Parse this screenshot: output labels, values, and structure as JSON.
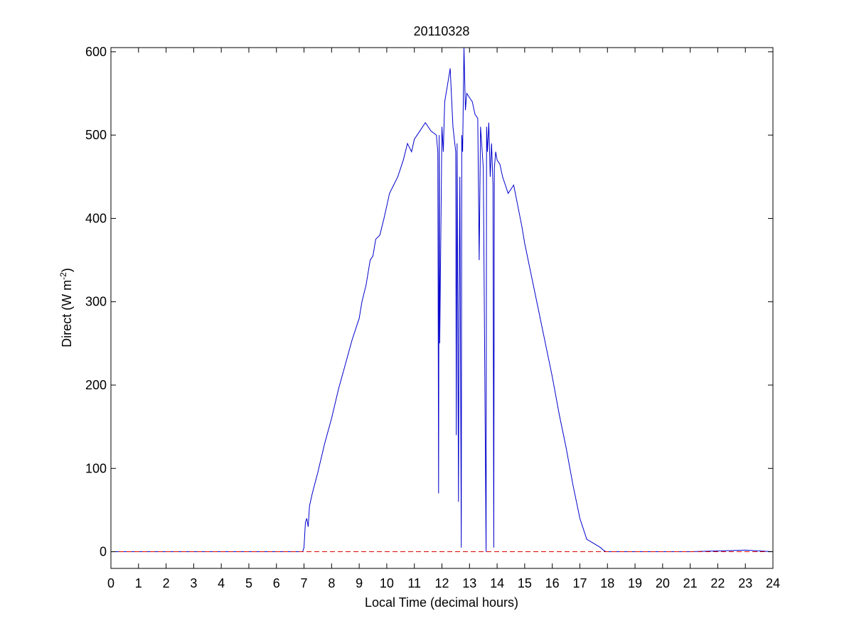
{
  "chart_data": {
    "type": "line",
    "title": "20110328",
    "xlabel": "Local Time (decimal hours)",
    "ylabel": {
      "prefix": "Direct (W m",
      "superscript": "-2",
      "suffix": ")"
    },
    "xlim": [
      0,
      24
    ],
    "ylim": [
      -20,
      605
    ],
    "xticks": [
      0,
      1,
      2,
      3,
      4,
      5,
      6,
      7,
      8,
      9,
      10,
      11,
      12,
      13,
      14,
      15,
      16,
      17,
      18,
      19,
      20,
      21,
      22,
      23,
      24
    ],
    "yticks": [
      0,
      100,
      200,
      300,
      400,
      500,
      600
    ],
    "grid": false,
    "colors": {
      "series": "#0000cc",
      "reference": "#dd0000"
    },
    "series": [
      {
        "style": "solid",
        "x": [
          0,
          6.95,
          7.0,
          7.05,
          7.1,
          7.15,
          7.2,
          7.3,
          7.5,
          7.75,
          8.0,
          8.25,
          8.5,
          8.75,
          9.0,
          9.1,
          9.25,
          9.4,
          9.5,
          9.6,
          9.75,
          9.9,
          10.0,
          10.1,
          10.25,
          10.4,
          10.6,
          10.75,
          10.9,
          11.0,
          11.2,
          11.4,
          11.6,
          11.8,
          11.85,
          11.88,
          11.9,
          11.92,
          12.0,
          12.05,
          12.1,
          12.2,
          12.3,
          12.4,
          12.5,
          12.52,
          12.55,
          12.6,
          12.62,
          12.65,
          12.7,
          12.72,
          12.75,
          12.8,
          12.85,
          12.9,
          13.0,
          13.1,
          13.2,
          13.3,
          13.35,
          13.4,
          13.5,
          13.6,
          13.62,
          13.65,
          13.7,
          13.75,
          13.8,
          13.85,
          13.88,
          13.9,
          13.95,
          14.0,
          14.1,
          14.2,
          14.3,
          14.4,
          14.5,
          14.6,
          14.75,
          14.9,
          15.0,
          15.25,
          15.5,
          15.75,
          16.0,
          16.25,
          16.5,
          16.75,
          17.0,
          17.25,
          17.5,
          17.75,
          17.85,
          17.95,
          18.0,
          18.2,
          21.0,
          22.0,
          23.0,
          24.0
        ],
        "y": [
          0,
          0,
          5,
          35,
          40,
          30,
          55,
          70,
          95,
          130,
          160,
          195,
          225,
          255,
          280,
          300,
          320,
          350,
          355,
          375,
          380,
          400,
          415,
          430,
          440,
          450,
          470,
          490,
          480,
          495,
          505,
          515,
          505,
          500,
          480,
          70,
          500,
          250,
          510,
          480,
          540,
          560,
          580,
          510,
          480,
          140,
          490,
          60,
          300,
          450,
          5,
          500,
          480,
          605,
          530,
          550,
          545,
          540,
          525,
          520,
          350,
          510,
          460,
          0,
          510,
          480,
          515,
          450,
          490,
          440,
          5,
          460,
          480,
          470,
          465,
          450,
          440,
          430,
          435,
          440,
          415,
          390,
          370,
          330,
          290,
          250,
          210,
          165,
          125,
          80,
          40,
          15,
          10,
          5,
          2,
          0,
          0,
          0,
          0,
          1,
          2,
          0
        ]
      },
      {
        "style": "dashed",
        "x": [
          0,
          24
        ],
        "y": [
          0,
          0
        ]
      }
    ]
  }
}
